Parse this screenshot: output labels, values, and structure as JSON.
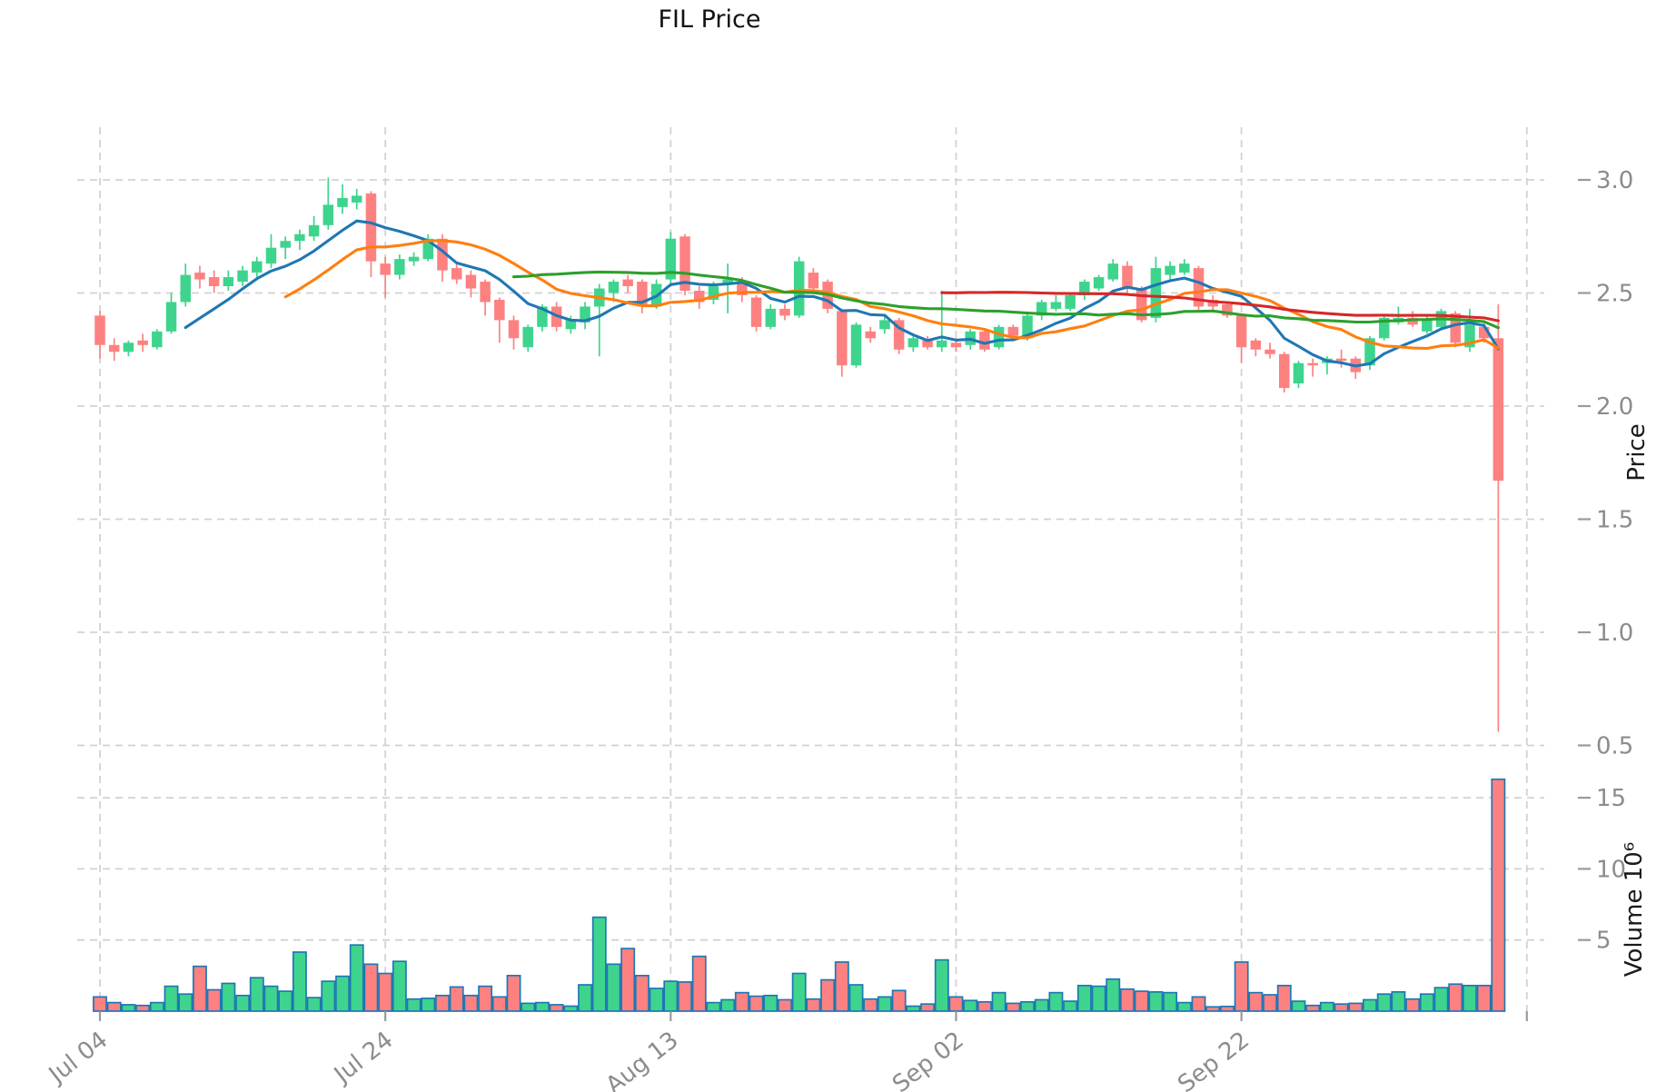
{
  "title": "FIL Price",
  "price_axis": {
    "label": "Price",
    "ticks": [
      "3.0",
      "2.5",
      "2.0",
      "1.5",
      "1.0",
      "0.5"
    ],
    "tick_values": [
      3.0,
      2.5,
      2.0,
      1.5,
      1.0,
      0.5
    ]
  },
  "volume_axis": {
    "label": "Volume",
    "unit": "10⁶",
    "label_full": "Volume  10⁶",
    "ticks": [
      "15",
      "10",
      "5"
    ],
    "tick_values": [
      15,
      10,
      5
    ]
  },
  "x_axis": {
    "ticks": [
      {
        "label": "Jul 04",
        "index": 0
      },
      {
        "label": "Jul 24",
        "index": 20
      },
      {
        "label": "Aug 13",
        "index": 40
      },
      {
        "label": "Sep 02",
        "index": 60
      },
      {
        "label": "Sep 22",
        "index": 80
      },
      {
        "label": "",
        "index": 100
      }
    ]
  },
  "colors": {
    "up": "#3ed48d",
    "down": "#fd8181",
    "volume_edge": "#1f77b4",
    "grid": "#d2d2d2",
    "tick_text": "#8c8c8c",
    "tick_mark": "#9a9a9a",
    "title_text": "#111111",
    "sma7": "#1f77b4",
    "sma14": "#ff7f0e",
    "sma30": "#2ca02c",
    "sma60": "#d62728"
  },
  "chart_data": {
    "type": "candlestick+volume",
    "title": "FIL Price",
    "ylabel": "Price",
    "ylabel_volume": "Volume 10⁶",
    "price_ylim": [
      0.4,
      3.23
    ],
    "volume_ylim_millions": [
      0,
      17.1
    ],
    "grid": true,
    "legend": "none",
    "indicators": [
      {
        "name": "SMA7",
        "window": 7,
        "color": "#1f77b4"
      },
      {
        "name": "SMA14",
        "window": 14,
        "color": "#ff7f0e"
      },
      {
        "name": "SMA30",
        "window": 30,
        "color": "#2ca02c"
      },
      {
        "name": "SMA60",
        "window": 60,
        "color": "#d62728"
      }
    ],
    "volume_unit": 1000000,
    "candles": [
      {
        "date": "Jul 04",
        "o": 2.4,
        "h": 2.42,
        "l": 2.21,
        "c": 2.27,
        "v": 1.0
      },
      {
        "date": "Jul 05",
        "o": 2.27,
        "h": 2.3,
        "l": 2.2,
        "c": 2.24,
        "v": 0.6
      },
      {
        "date": "Jul 06",
        "o": 2.24,
        "h": 2.29,
        "l": 2.22,
        "c": 2.28,
        "v": 0.45
      },
      {
        "date": "Jul 07",
        "o": 2.29,
        "h": 2.32,
        "l": 2.24,
        "c": 2.27,
        "v": 0.4
      },
      {
        "date": "Jul 08",
        "o": 2.26,
        "h": 2.34,
        "l": 2.25,
        "c": 2.33,
        "v": 0.6
      },
      {
        "date": "Jul 09",
        "o": 2.33,
        "h": 2.5,
        "l": 2.32,
        "c": 2.46,
        "v": 1.75
      },
      {
        "date": "Jul 10",
        "o": 2.46,
        "h": 2.63,
        "l": 2.44,
        "c": 2.58,
        "v": 1.2
      },
      {
        "date": "Jul 11",
        "o": 2.59,
        "h": 2.62,
        "l": 2.52,
        "c": 2.56,
        "v": 3.15
      },
      {
        "date": "Jul 12",
        "o": 2.57,
        "h": 2.6,
        "l": 2.5,
        "c": 2.53,
        "v": 1.5
      },
      {
        "date": "Jul 13",
        "o": 2.53,
        "h": 2.6,
        "l": 2.51,
        "c": 2.57,
        "v": 1.95
      },
      {
        "date": "Jul 14",
        "o": 2.55,
        "h": 2.62,
        "l": 2.53,
        "c": 2.6,
        "v": 1.1
      },
      {
        "date": "Jul 15",
        "o": 2.59,
        "h": 2.66,
        "l": 2.57,
        "c": 2.64,
        "v": 2.35
      },
      {
        "date": "Jul 16",
        "o": 2.63,
        "h": 2.76,
        "l": 2.61,
        "c": 2.7,
        "v": 1.75
      },
      {
        "date": "Jul 17",
        "o": 2.7,
        "h": 2.75,
        "l": 2.65,
        "c": 2.73,
        "v": 1.4
      },
      {
        "date": "Jul 18",
        "o": 2.73,
        "h": 2.78,
        "l": 2.69,
        "c": 2.76,
        "v": 4.15
      },
      {
        "date": "Jul 19",
        "o": 2.75,
        "h": 2.84,
        "l": 2.73,
        "c": 2.8,
        "v": 0.95
      },
      {
        "date": "Jul 20",
        "o": 2.8,
        "h": 3.01,
        "l": 2.78,
        "c": 2.89,
        "v": 2.1
      },
      {
        "date": "Jul 21",
        "o": 2.88,
        "h": 2.98,
        "l": 2.85,
        "c": 2.92,
        "v": 2.45
      },
      {
        "date": "Jul 22",
        "o": 2.9,
        "h": 2.96,
        "l": 2.87,
        "c": 2.93,
        "v": 4.65
      },
      {
        "date": "Jul 23",
        "o": 2.94,
        "h": 2.95,
        "l": 2.57,
        "c": 2.64,
        "v": 3.3
      },
      {
        "date": "Jul 24",
        "o": 2.63,
        "h": 2.66,
        "l": 2.48,
        "c": 2.58,
        "v": 2.65
      },
      {
        "date": "Jul 25",
        "o": 2.58,
        "h": 2.67,
        "l": 2.56,
        "c": 2.65,
        "v": 3.5
      },
      {
        "date": "Jul 26",
        "o": 2.64,
        "h": 2.68,
        "l": 2.62,
        "c": 2.66,
        "v": 0.85
      },
      {
        "date": "Jul 27",
        "o": 2.65,
        "h": 2.76,
        "l": 2.64,
        "c": 2.74,
        "v": 0.9
      },
      {
        "date": "Jul 28",
        "o": 2.74,
        "h": 2.76,
        "l": 2.55,
        "c": 2.6,
        "v": 1.1
      },
      {
        "date": "Jul 29",
        "o": 2.61,
        "h": 2.63,
        "l": 2.54,
        "c": 2.56,
        "v": 1.7
      },
      {
        "date": "Jul 30",
        "o": 2.58,
        "h": 2.6,
        "l": 2.48,
        "c": 2.52,
        "v": 1.1
      },
      {
        "date": "Jul 31",
        "o": 2.55,
        "h": 2.56,
        "l": 2.4,
        "c": 2.46,
        "v": 1.75
      },
      {
        "date": "Aug 01",
        "o": 2.47,
        "h": 2.48,
        "l": 2.28,
        "c": 2.38,
        "v": 1.0
      },
      {
        "date": "Aug 02",
        "o": 2.38,
        "h": 2.4,
        "l": 2.25,
        "c": 2.3,
        "v": 2.5
      },
      {
        "date": "Aug 03",
        "o": 2.26,
        "h": 2.36,
        "l": 2.24,
        "c": 2.35,
        "v": 0.55
      },
      {
        "date": "Aug 04",
        "o": 2.35,
        "h": 2.45,
        "l": 2.33,
        "c": 2.44,
        "v": 0.6
      },
      {
        "date": "Aug 05",
        "o": 2.44,
        "h": 2.46,
        "l": 2.33,
        "c": 2.35,
        "v": 0.45
      },
      {
        "date": "Aug 06",
        "o": 2.34,
        "h": 2.4,
        "l": 2.32,
        "c": 2.38,
        "v": 0.35
      },
      {
        "date": "Aug 07",
        "o": 2.37,
        "h": 2.46,
        "l": 2.34,
        "c": 2.44,
        "v": 1.85
      },
      {
        "date": "Aug 08",
        "o": 2.44,
        "h": 2.54,
        "l": 2.22,
        "c": 2.52,
        "v": 6.6
      },
      {
        "date": "Aug 09",
        "o": 2.5,
        "h": 2.56,
        "l": 2.46,
        "c": 2.55,
        "v": 3.3
      },
      {
        "date": "Aug 10",
        "o": 2.56,
        "h": 2.58,
        "l": 2.5,
        "c": 2.53,
        "v": 4.4
      },
      {
        "date": "Aug 11",
        "o": 2.55,
        "h": 2.56,
        "l": 2.41,
        "c": 2.44,
        "v": 2.5
      },
      {
        "date": "Aug 12",
        "o": 2.44,
        "h": 2.56,
        "l": 2.43,
        "c": 2.54,
        "v": 1.6
      },
      {
        "date": "Aug 13",
        "o": 2.56,
        "h": 2.77,
        "l": 2.54,
        "c": 2.74,
        "v": 2.1
      },
      {
        "date": "Aug 14",
        "o": 2.75,
        "h": 2.76,
        "l": 2.49,
        "c": 2.51,
        "v": 2.05
      },
      {
        "date": "Aug 15",
        "o": 2.51,
        "h": 2.53,
        "l": 2.43,
        "c": 2.46,
        "v": 3.85
      },
      {
        "date": "Aug 16",
        "o": 2.47,
        "h": 2.55,
        "l": 2.45,
        "c": 2.53,
        "v": 0.6
      },
      {
        "date": "Aug 17",
        "o": 2.54,
        "h": 2.63,
        "l": 2.41,
        "c": 2.56,
        "v": 0.8
      },
      {
        "date": "Aug 18",
        "o": 2.55,
        "h": 2.57,
        "l": 2.46,
        "c": 2.49,
        "v": 1.3
      },
      {
        "date": "Aug 19",
        "o": 2.48,
        "h": 2.49,
        "l": 2.33,
        "c": 2.35,
        "v": 1.05
      },
      {
        "date": "Aug 20",
        "o": 2.35,
        "h": 2.45,
        "l": 2.34,
        "c": 2.43,
        "v": 1.1
      },
      {
        "date": "Aug 21",
        "o": 2.43,
        "h": 2.45,
        "l": 2.38,
        "c": 2.4,
        "v": 0.8
      },
      {
        "date": "Aug 22",
        "o": 2.4,
        "h": 2.66,
        "l": 2.39,
        "c": 2.64,
        "v": 2.65
      },
      {
        "date": "Aug 23",
        "o": 2.59,
        "h": 2.61,
        "l": 2.5,
        "c": 2.52,
        "v": 0.85
      },
      {
        "date": "Aug 24",
        "o": 2.55,
        "h": 2.56,
        "l": 2.41,
        "c": 2.43,
        "v": 2.2
      },
      {
        "date": "Aug 25",
        "o": 2.42,
        "h": 2.43,
        "l": 2.13,
        "c": 2.18,
        "v": 3.45
      },
      {
        "date": "Aug 26",
        "o": 2.18,
        "h": 2.37,
        "l": 2.17,
        "c": 2.36,
        "v": 1.85
      },
      {
        "date": "Aug 27",
        "o": 2.33,
        "h": 2.35,
        "l": 2.28,
        "c": 2.3,
        "v": 0.85
      },
      {
        "date": "Aug 28",
        "o": 2.34,
        "h": 2.4,
        "l": 2.32,
        "c": 2.38,
        "v": 1.0
      },
      {
        "date": "Aug 29",
        "o": 2.38,
        "h": 2.39,
        "l": 2.23,
        "c": 2.25,
        "v": 1.45
      },
      {
        "date": "Aug 30",
        "o": 2.26,
        "h": 2.32,
        "l": 2.24,
        "c": 2.3,
        "v": 0.35
      },
      {
        "date": "Aug 31",
        "o": 2.29,
        "h": 2.31,
        "l": 2.25,
        "c": 2.26,
        "v": 0.5
      },
      {
        "date": "Sep 01",
        "o": 2.26,
        "h": 2.51,
        "l": 2.24,
        "c": 2.29,
        "v": 3.6
      },
      {
        "date": "Sep 02",
        "o": 2.28,
        "h": 2.3,
        "l": 2.24,
        "c": 2.26,
        "v": 1.0
      },
      {
        "date": "Sep 03",
        "o": 2.27,
        "h": 2.34,
        "l": 2.25,
        "c": 2.33,
        "v": 0.75
      },
      {
        "date": "Sep 04",
        "o": 2.33,
        "h": 2.34,
        "l": 2.24,
        "c": 2.25,
        "v": 0.65
      },
      {
        "date": "Sep 05",
        "o": 2.26,
        "h": 2.36,
        "l": 2.25,
        "c": 2.35,
        "v": 1.3
      },
      {
        "date": "Sep 06",
        "o": 2.35,
        "h": 2.36,
        "l": 2.3,
        "c": 2.31,
        "v": 0.55
      },
      {
        "date": "Sep 07",
        "o": 2.3,
        "h": 2.41,
        "l": 2.29,
        "c": 2.4,
        "v": 0.65
      },
      {
        "date": "Sep 08",
        "o": 2.4,
        "h": 2.47,
        "l": 2.38,
        "c": 2.46,
        "v": 0.8
      },
      {
        "date": "Sep 09",
        "o": 2.43,
        "h": 2.49,
        "l": 2.42,
        "c": 2.46,
        "v": 1.3
      },
      {
        "date": "Sep 10",
        "o": 2.43,
        "h": 2.5,
        "l": 2.42,
        "c": 2.49,
        "v": 0.7
      },
      {
        "date": "Sep 11",
        "o": 2.49,
        "h": 2.56,
        "l": 2.47,
        "c": 2.55,
        "v": 1.8
      },
      {
        "date": "Sep 12",
        "o": 2.52,
        "h": 2.58,
        "l": 2.51,
        "c": 2.57,
        "v": 1.75
      },
      {
        "date": "Sep 13",
        "o": 2.56,
        "h": 2.65,
        "l": 2.55,
        "c": 2.63,
        "v": 2.25
      },
      {
        "date": "Sep 14",
        "o": 2.62,
        "h": 2.64,
        "l": 2.5,
        "c": 2.52,
        "v": 1.55
      },
      {
        "date": "Sep 15",
        "o": 2.52,
        "h": 2.53,
        "l": 2.37,
        "c": 2.38,
        "v": 1.4
      },
      {
        "date": "Sep 16",
        "o": 2.39,
        "h": 2.66,
        "l": 2.37,
        "c": 2.61,
        "v": 1.35
      },
      {
        "date": "Sep 17",
        "o": 2.58,
        "h": 2.64,
        "l": 2.55,
        "c": 2.62,
        "v": 1.3
      },
      {
        "date": "Sep 18",
        "o": 2.59,
        "h": 2.65,
        "l": 2.58,
        "c": 2.63,
        "v": 0.6
      },
      {
        "date": "Sep 19",
        "o": 2.61,
        "h": 2.62,
        "l": 2.42,
        "c": 2.44,
        "v": 1.0
      },
      {
        "date": "Sep 20",
        "o": 2.47,
        "h": 2.49,
        "l": 2.42,
        "c": 2.44,
        "v": 0.3
      },
      {
        "date": "Sep 21",
        "o": 2.45,
        "h": 2.46,
        "l": 2.39,
        "c": 2.4,
        "v": 0.33
      },
      {
        "date": "Sep 22",
        "o": 2.4,
        "h": 2.41,
        "l": 2.19,
        "c": 2.26,
        "v": 3.45
      },
      {
        "date": "Sep 23",
        "o": 2.29,
        "h": 2.3,
        "l": 2.22,
        "c": 2.25,
        "v": 1.3
      },
      {
        "date": "Sep 24",
        "o": 2.25,
        "h": 2.28,
        "l": 2.21,
        "c": 2.23,
        "v": 1.15
      },
      {
        "date": "Sep 25",
        "o": 2.23,
        "h": 2.24,
        "l": 2.06,
        "c": 2.08,
        "v": 1.8
      },
      {
        "date": "Sep 26",
        "o": 2.1,
        "h": 2.2,
        "l": 2.08,
        "c": 2.19,
        "v": 0.7
      },
      {
        "date": "Sep 27",
        "o": 2.19,
        "h": 2.21,
        "l": 2.13,
        "c": 2.18,
        "v": 0.4
      },
      {
        "date": "Sep 28",
        "o": 2.19,
        "h": 2.22,
        "l": 2.14,
        "c": 2.21,
        "v": 0.6
      },
      {
        "date": "Sep 29",
        "o": 2.21,
        "h": 2.25,
        "l": 2.17,
        "c": 2.2,
        "v": 0.5
      },
      {
        "date": "Sep 30",
        "o": 2.21,
        "h": 2.22,
        "l": 2.12,
        "c": 2.15,
        "v": 0.55
      },
      {
        "date": "Oct 01",
        "o": 2.18,
        "h": 2.31,
        "l": 2.16,
        "c": 2.3,
        "v": 0.8
      },
      {
        "date": "Oct 02",
        "o": 2.3,
        "h": 2.4,
        "l": 2.29,
        "c": 2.39,
        "v": 1.2
      },
      {
        "date": "Oct 03",
        "o": 2.37,
        "h": 2.44,
        "l": 2.36,
        "c": 2.39,
        "v": 1.35
      },
      {
        "date": "Oct 04",
        "o": 2.39,
        "h": 2.42,
        "l": 2.35,
        "c": 2.36,
        "v": 0.85
      },
      {
        "date": "Oct 05",
        "o": 2.33,
        "h": 2.4,
        "l": 2.32,
        "c": 2.38,
        "v": 1.2
      },
      {
        "date": "Oct 06",
        "o": 2.35,
        "h": 2.43,
        "l": 2.34,
        "c": 2.42,
        "v": 1.65
      },
      {
        "date": "Oct 07",
        "o": 2.41,
        "h": 2.42,
        "l": 2.26,
        "c": 2.28,
        "v": 1.9
      },
      {
        "date": "Oct 08",
        "o": 2.26,
        "h": 2.43,
        "l": 2.24,
        "c": 2.36,
        "v": 1.8
      },
      {
        "date": "Oct 09",
        "o": 2.35,
        "h": 2.38,
        "l": 2.28,
        "c": 2.3,
        "v": 1.8
      },
      {
        "date": "Oct 10",
        "o": 2.3,
        "h": 2.45,
        "l": 0.56,
        "c": 1.67,
        "v": 16.3
      }
    ]
  }
}
